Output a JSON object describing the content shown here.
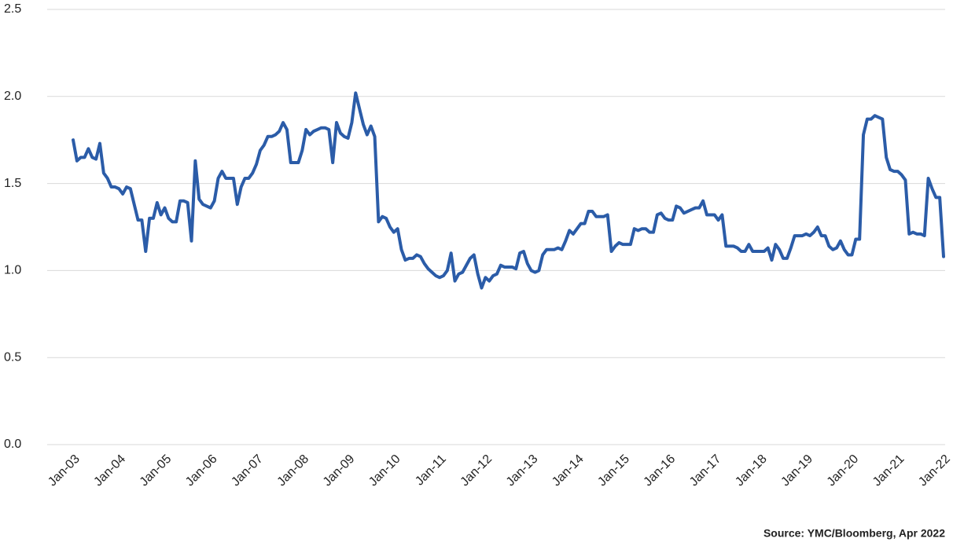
{
  "chart_data": {
    "type": "line",
    "annotation": "Source: YMC/Bloomberg, Apr 2022",
    "color": "#2b5ca8",
    "grid": true,
    "ylim": [
      0,
      2.5
    ],
    "yticks": [
      {
        "value": 0,
        "label": "0.0"
      },
      0.5,
      {
        "value": 1,
        "label": "1.0"
      },
      1.5,
      {
        "value": 2,
        "label": "2.0"
      },
      2.5
    ],
    "categories": [
      "Jan-03",
      null,
      null,
      null,
      null,
      null,
      null,
      null,
      null,
      null,
      null,
      null,
      "Jan-04",
      null,
      null,
      null,
      null,
      null,
      null,
      null,
      null,
      null,
      null,
      null,
      "Jan-05",
      null,
      null,
      null,
      null,
      null,
      null,
      null,
      null,
      null,
      null,
      null,
      "Jan-06",
      null,
      null,
      null,
      null,
      null,
      null,
      null,
      null,
      null,
      null,
      null,
      "Jan-07",
      null,
      null,
      null,
      null,
      null,
      null,
      null,
      null,
      null,
      null,
      null,
      "Jan-08",
      null,
      null,
      null,
      null,
      null,
      null,
      null,
      null,
      null,
      null,
      null,
      "Jan-09",
      null,
      null,
      null,
      null,
      null,
      null,
      null,
      null,
      null,
      null,
      null,
      "Jan-10",
      null,
      null,
      null,
      null,
      null,
      null,
      null,
      null,
      null,
      null,
      null,
      "Jan-11",
      null,
      null,
      null,
      null,
      null,
      null,
      null,
      null,
      null,
      null,
      null,
      "Jan-12",
      null,
      null,
      null,
      null,
      null,
      null,
      null,
      null,
      null,
      null,
      null,
      "Jan-13",
      null,
      null,
      null,
      null,
      null,
      null,
      null,
      null,
      null,
      null,
      null,
      "Jan-14",
      null,
      null,
      null,
      null,
      null,
      null,
      null,
      null,
      null,
      null,
      null,
      "Jan-15",
      null,
      null,
      null,
      null,
      null,
      null,
      null,
      null,
      null,
      null,
      null,
      "Jan-16",
      null,
      null,
      null,
      null,
      null,
      null,
      null,
      null,
      null,
      null,
      null,
      "Jan-17",
      null,
      null,
      null,
      null,
      null,
      null,
      null,
      null,
      null,
      null,
      null,
      "Jan-18",
      null,
      null,
      null,
      null,
      null,
      null,
      null,
      null,
      null,
      null,
      null,
      "Jan-19",
      null,
      null,
      null,
      null,
      null,
      null,
      null,
      null,
      null,
      null,
      null,
      "Jan-20",
      null,
      null,
      null,
      null,
      null,
      null,
      null,
      null,
      null,
      null,
      null,
      "Jan-21",
      null,
      null,
      null,
      null,
      null,
      null,
      null,
      null,
      null,
      null,
      null,
      "Jan-22"
    ],
    "values": [
      1.75,
      1.63,
      1.65,
      1.65,
      1.7,
      1.65,
      1.64,
      1.73,
      1.56,
      1.53,
      1.48,
      1.48,
      1.47,
      1.44,
      1.48,
      1.47,
      1.38,
      1.29,
      1.29,
      1.11,
      1.3,
      1.3,
      1.39,
      1.32,
      1.36,
      1.3,
      1.28,
      1.28,
      1.4,
      1.4,
      1.39,
      1.17,
      1.63,
      1.41,
      1.38,
      1.37,
      1.36,
      1.4,
      1.53,
      1.57,
      1.53,
      1.53,
      1.53,
      1.38,
      1.48,
      1.53,
      1.53,
      1.56,
      1.61,
      1.69,
      1.72,
      1.77,
      1.77,
      1.78,
      1.8,
      1.85,
      1.81,
      1.62,
      1.62,
      1.62,
      1.69,
      1.81,
      1.78,
      1.8,
      1.81,
      1.82,
      1.82,
      1.81,
      1.62,
      1.85,
      1.79,
      1.77,
      1.76,
      1.85,
      2.02,
      1.93,
      1.84,
      1.78,
      1.83,
      1.77,
      1.28,
      1.31,
      1.3,
      1.25,
      1.22,
      1.24,
      1.12,
      1.06,
      1.07,
      1.07,
      1.09,
      1.08,
      1.04,
      1.01,
      0.99,
      0.97,
      0.96,
      0.97,
      1.0,
      1.1,
      0.94,
      0.98,
      0.99,
      1.03,
      1.07,
      1.09,
      0.98,
      0.9,
      0.96,
      0.94,
      0.97,
      0.98,
      1.03,
      1.02,
      1.02,
      1.02,
      1.01,
      1.1,
      1.11,
      1.04,
      1.0,
      0.99,
      1.0,
      1.09,
      1.12,
      1.12,
      1.12,
      1.13,
      1.12,
      1.17,
      1.23,
      1.21,
      1.24,
      1.27,
      1.27,
      1.34,
      1.34,
      1.31,
      1.31,
      1.31,
      1.32,
      1.11,
      1.14,
      1.16,
      1.15,
      1.15,
      1.15,
      1.24,
      1.23,
      1.24,
      1.24,
      1.22,
      1.22,
      1.32,
      1.33,
      1.3,
      1.29,
      1.29,
      1.37,
      1.36,
      1.33,
      1.34,
      1.35,
      1.36,
      1.36,
      1.4,
      1.32,
      1.32,
      1.32,
      1.29,
      1.32,
      1.14,
      1.14,
      1.14,
      1.13,
      1.11,
      1.11,
      1.15,
      1.11,
      1.11,
      1.11,
      1.11,
      1.13,
      1.06,
      1.15,
      1.12,
      1.07,
      1.07,
      1.13,
      1.2,
      1.2,
      1.2,
      1.21,
      1.2,
      1.22,
      1.25,
      1.2,
      1.2,
      1.14,
      1.12,
      1.13,
      1.17,
      1.12,
      1.09,
      1.09,
      1.18,
      1.18,
      1.78,
      1.87,
      1.87,
      1.89,
      1.88,
      1.87,
      1.65,
      1.58,
      1.57,
      1.57,
      1.55,
      1.52,
      1.21,
      1.22,
      1.21,
      1.21,
      1.2,
      1.53,
      1.47,
      1.42,
      1.42,
      1.08
    ]
  }
}
